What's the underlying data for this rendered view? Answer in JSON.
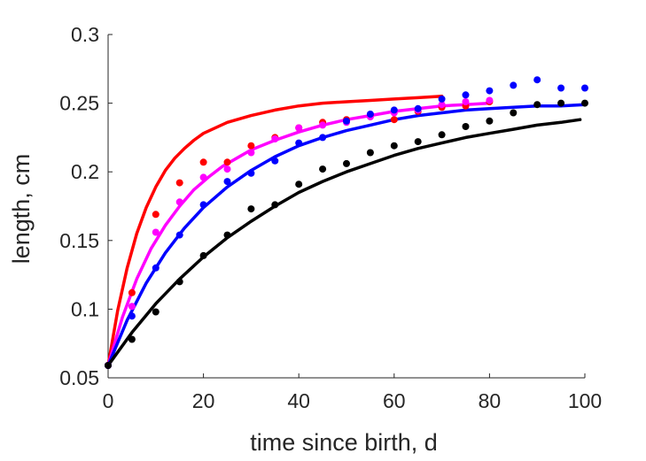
{
  "chart_data": {
    "type": "scatter",
    "title": "",
    "xlabel": "time since birth, d",
    "ylabel": "length, cm",
    "xlim": [
      0,
      100
    ],
    "ylim": [
      0.05,
      0.3
    ],
    "xticks": [
      "0",
      "20",
      "40",
      "60",
      "80",
      "100"
    ],
    "yticks": [
      "0.05",
      "0.1",
      "0.15",
      "0.2",
      "0.25",
      "0.3"
    ],
    "grid": false,
    "legend": "none",
    "series": [
      {
        "color": "#ff0000",
        "points": [
          [
            0,
            0.059
          ],
          [
            5,
            0.112
          ],
          [
            10,
            0.169
          ],
          [
            15,
            0.192
          ],
          [
            20,
            0.207
          ],
          [
            25,
            0.207
          ],
          [
            30,
            0.219
          ],
          [
            35,
            0.225
          ],
          [
            40,
            0.232
          ],
          [
            45,
            0.236
          ],
          [
            50,
            0.238
          ],
          [
            55,
            0.241
          ],
          [
            60,
            0.238
          ],
          [
            65,
            0.244
          ],
          [
            70,
            0.247
          ],
          [
            75,
            0.248
          ],
          [
            80,
            0.251
          ]
        ],
        "fit": [
          [
            0,
            0.059
          ],
          [
            2,
            0.099
          ],
          [
            4,
            0.13
          ],
          [
            6,
            0.155
          ],
          [
            8,
            0.174
          ],
          [
            10,
            0.189
          ],
          [
            12,
            0.201
          ],
          [
            14,
            0.21
          ],
          [
            16,
            0.217
          ],
          [
            18,
            0.223
          ],
          [
            20,
            0.228
          ],
          [
            25,
            0.236
          ],
          [
            30,
            0.241
          ],
          [
            35,
            0.245
          ],
          [
            40,
            0.248
          ],
          [
            45,
            0.25
          ],
          [
            50,
            0.251
          ],
          [
            55,
            0.252
          ],
          [
            60,
            0.253
          ],
          [
            65,
            0.254
          ],
          [
            70,
            0.255
          ]
        ]
      },
      {
        "color": "#ff00ff",
        "points": [
          [
            0,
            0.059
          ],
          [
            5,
            0.102
          ],
          [
            10,
            0.156
          ],
          [
            15,
            0.178
          ],
          [
            20,
            0.196
          ],
          [
            25,
            0.202
          ],
          [
            30,
            0.214
          ],
          [
            35,
            0.224
          ],
          [
            40,
            0.232
          ],
          [
            45,
            0.234
          ],
          [
            50,
            0.236
          ],
          [
            55,
            0.24
          ],
          [
            60,
            0.243
          ],
          [
            65,
            0.245
          ],
          [
            70,
            0.249
          ],
          [
            75,
            0.251
          ],
          [
            80,
            0.252
          ]
        ],
        "fit": [
          [
            0,
            0.059
          ],
          [
            3,
            0.094
          ],
          [
            6,
            0.122
          ],
          [
            9,
            0.144
          ],
          [
            12,
            0.161
          ],
          [
            15,
            0.175
          ],
          [
            18,
            0.187
          ],
          [
            21,
            0.196
          ],
          [
            24,
            0.204
          ],
          [
            27,
            0.21
          ],
          [
            30,
            0.216
          ],
          [
            35,
            0.223
          ],
          [
            40,
            0.229
          ],
          [
            45,
            0.234
          ],
          [
            50,
            0.238
          ],
          [
            55,
            0.241
          ],
          [
            60,
            0.244
          ],
          [
            65,
            0.246
          ],
          [
            70,
            0.248
          ],
          [
            75,
            0.249
          ],
          [
            80,
            0.25
          ]
        ]
      },
      {
        "color": "#0000ff",
        "points": [
          [
            0,
            0.059
          ],
          [
            5,
            0.095
          ],
          [
            10,
            0.13
          ],
          [
            15,
            0.154
          ],
          [
            20,
            0.176
          ],
          [
            25,
            0.193
          ],
          [
            30,
            0.199
          ],
          [
            35,
            0.208
          ],
          [
            40,
            0.221
          ],
          [
            45,
            0.225
          ],
          [
            50,
            0.237
          ],
          [
            55,
            0.242
          ],
          [
            60,
            0.245
          ],
          [
            65,
            0.246
          ],
          [
            70,
            0.253
          ],
          [
            75,
            0.256
          ],
          [
            80,
            0.259
          ],
          [
            85,
            0.263
          ],
          [
            90,
            0.267
          ],
          [
            95,
            0.261
          ],
          [
            100,
            0.261
          ]
        ],
        "fit": [
          [
            0,
            0.059
          ],
          [
            4,
            0.092
          ],
          [
            8,
            0.119
          ],
          [
            12,
            0.141
          ],
          [
            16,
            0.159
          ],
          [
            20,
            0.174
          ],
          [
            25,
            0.189
          ],
          [
            30,
            0.201
          ],
          [
            35,
            0.211
          ],
          [
            40,
            0.219
          ],
          [
            45,
            0.225
          ],
          [
            50,
            0.23
          ],
          [
            55,
            0.234
          ],
          [
            60,
            0.238
          ],
          [
            65,
            0.241
          ],
          [
            70,
            0.243
          ],
          [
            75,
            0.245
          ],
          [
            80,
            0.246
          ],
          [
            85,
            0.247
          ],
          [
            90,
            0.248
          ],
          [
            95,
            0.248
          ],
          [
            100,
            0.249
          ]
        ]
      },
      {
        "color": "#000000",
        "points": [
          [
            0,
            0.059
          ],
          [
            5,
            0.078
          ],
          [
            10,
            0.098
          ],
          [
            15,
            0.12
          ],
          [
            20,
            0.139
          ],
          [
            25,
            0.154
          ],
          [
            30,
            0.173
          ],
          [
            35,
            0.176
          ],
          [
            40,
            0.191
          ],
          [
            45,
            0.202
          ],
          [
            50,
            0.206
          ],
          [
            55,
            0.214
          ],
          [
            60,
            0.219
          ],
          [
            65,
            0.222
          ],
          [
            70,
            0.227
          ],
          [
            75,
            0.233
          ],
          [
            80,
            0.237
          ],
          [
            85,
            0.243
          ],
          [
            90,
            0.249
          ],
          [
            95,
            0.25
          ],
          [
            100,
            0.25
          ]
        ],
        "fit": [
          [
            0,
            0.059
          ],
          [
            5,
            0.083
          ],
          [
            10,
            0.104
          ],
          [
            15,
            0.122
          ],
          [
            20,
            0.138
          ],
          [
            25,
            0.152
          ],
          [
            30,
            0.164
          ],
          [
            35,
            0.175
          ],
          [
            40,
            0.185
          ],
          [
            45,
            0.193
          ],
          [
            50,
            0.2
          ],
          [
            55,
            0.206
          ],
          [
            60,
            0.212
          ],
          [
            65,
            0.217
          ],
          [
            70,
            0.221
          ],
          [
            75,
            0.225
          ],
          [
            80,
            0.228
          ],
          [
            85,
            0.231
          ],
          [
            90,
            0.234
          ],
          [
            95,
            0.236
          ],
          [
            99,
            0.238
          ]
        ]
      }
    ]
  }
}
